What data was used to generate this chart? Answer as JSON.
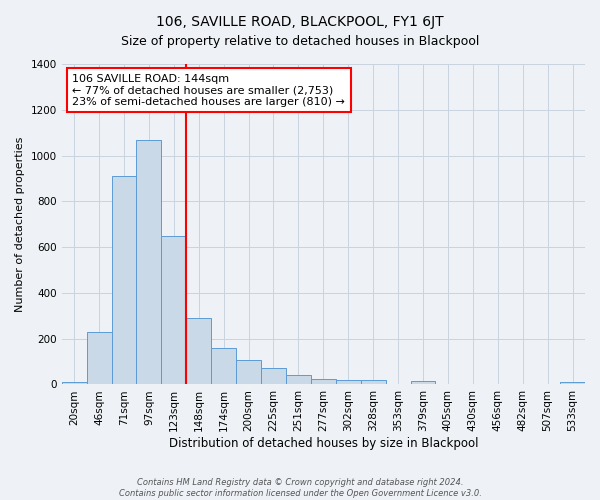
{
  "title": "106, SAVILLE ROAD, BLACKPOOL, FY1 6JT",
  "subtitle": "Size of property relative to detached houses in Blackpool",
  "xlabel": "Distribution of detached houses by size in Blackpool",
  "ylabel": "Number of detached properties",
  "bin_labels": [
    "20sqm",
    "46sqm",
    "71sqm",
    "97sqm",
    "123sqm",
    "148sqm",
    "174sqm",
    "200sqm",
    "225sqm",
    "251sqm",
    "277sqm",
    "302sqm",
    "328sqm",
    "353sqm",
    "379sqm",
    "405sqm",
    "430sqm",
    "456sqm",
    "482sqm",
    "507sqm",
    "533sqm"
  ],
  "bar_values": [
    10,
    230,
    910,
    1070,
    650,
    290,
    160,
    105,
    70,
    40,
    25,
    20,
    18,
    0,
    15,
    0,
    0,
    0,
    0,
    0,
    10
  ],
  "bar_color": "#c9d9e8",
  "bar_edge_color": "#5b9bd5",
  "vline_x": 5,
  "vline_color": "red",
  "annotation_line1": "106 SAVILLE ROAD: 144sqm",
  "annotation_line2": "← 77% of detached houses are smaller (2,753)",
  "annotation_line3": "23% of semi-detached houses are larger (810) →",
  "ylim": [
    0,
    1400
  ],
  "yticks": [
    0,
    200,
    400,
    600,
    800,
    1000,
    1200,
    1400
  ],
  "grid_color": "#c8d4de",
  "background_color": "#eef2f6",
  "footer_line1": "Contains HM Land Registry data © Crown copyright and database right 2024.",
  "footer_line2": "Contains public sector information licensed under the Open Government Licence v3.0.",
  "title_fontsize": 10,
  "subtitle_fontsize": 9,
  "xlabel_fontsize": 8.5,
  "ylabel_fontsize": 8,
  "tick_fontsize": 7.5,
  "annot_fontsize": 8
}
